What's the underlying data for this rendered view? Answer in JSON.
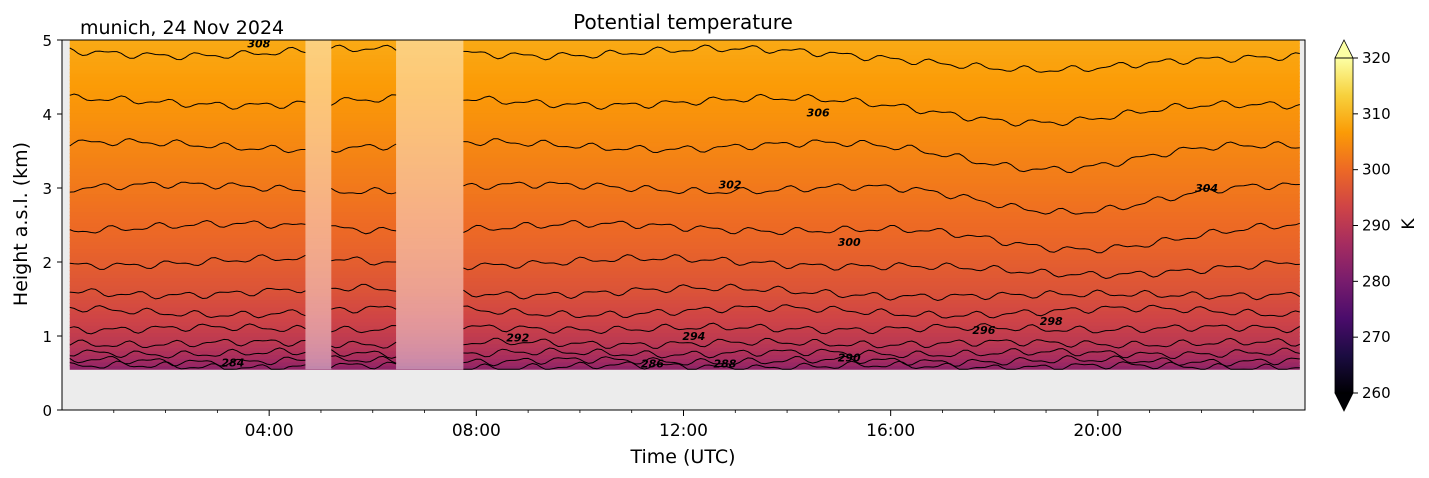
{
  "chart_data": {
    "type": "heatmap",
    "title": "Potential temperature",
    "location_date": "munich, 24 Nov 2024",
    "xlabel": "Time (UTC)",
    "ylabel": "Height a.s.l. (km)",
    "x_ticks": [
      "04:00",
      "08:00",
      "12:00",
      "16:00",
      "20:00"
    ],
    "x_tick_hours": [
      4,
      8,
      12,
      16,
      20
    ],
    "xlim_hours": [
      0,
      24
    ],
    "y_ticks": [
      "0",
      "1",
      "2",
      "3",
      "4",
      "5"
    ],
    "ylim_km": [
      0,
      5
    ],
    "data_bottom_km": 0.55,
    "data_time_range_hours": [
      0.15,
      23.9
    ],
    "missing_data_intervals_hours": [
      [
        4.7,
        5.2
      ],
      [
        6.45,
        7.75
      ]
    ],
    "colormap": "inferno",
    "colorbar": {
      "label": "K",
      "ticks": [
        "260",
        "270",
        "280",
        "290",
        "300",
        "310",
        "320"
      ],
      "range": [
        260,
        320
      ],
      "extend": "both"
    },
    "contour_levels": [
      284,
      286,
      288,
      290,
      292,
      294,
      296,
      298,
      300,
      302,
      304,
      306,
      308
    ],
    "contour_labels": [
      {
        "text": "284",
        "time_hours": 3.3,
        "height_km": 0.64
      },
      {
        "text": "286",
        "time_hours": 11.4,
        "height_km": 0.63
      },
      {
        "text": "288",
        "time_hours": 12.8,
        "height_km": 0.63
      },
      {
        "text": "290",
        "time_hours": 15.2,
        "height_km": 0.71
      },
      {
        "text": "292",
        "time_hours": 8.8,
        "height_km": 0.98
      },
      {
        "text": "294",
        "time_hours": 12.2,
        "height_km": 1.0
      },
      {
        "text": "296",
        "time_hours": 17.8,
        "height_km": 1.08
      },
      {
        "text": "298",
        "time_hours": 19.1,
        "height_km": 1.2
      },
      {
        "text": "300",
        "time_hours": 15.2,
        "height_km": 2.27
      },
      {
        "text": "302",
        "time_hours": 12.9,
        "height_km": 3.05
      },
      {
        "text": "304",
        "time_hours": 22.1,
        "height_km": 3.0
      },
      {
        "text": "306",
        "time_hours": 14.6,
        "height_km": 4.02
      },
      {
        "text": "308",
        "time_hours": 3.8,
        "height_km": 4.95
      }
    ],
    "background_gradient": [
      {
        "height_km": 0.55,
        "theta_K": 283
      },
      {
        "height_km": 0.7,
        "theta_K": 287
      },
      {
        "height_km": 0.9,
        "theta_K": 290
      },
      {
        "height_km": 1.2,
        "theta_K": 293
      },
      {
        "height_km": 1.6,
        "theta_K": 296
      },
      {
        "height_km": 2.2,
        "theta_K": 299
      },
      {
        "height_km": 3.0,
        "theta_K": 302
      },
      {
        "height_km": 4.0,
        "theta_K": 305.5
      },
      {
        "height_km": 5.0,
        "theta_K": 308.5
      }
    ]
  },
  "colors": {
    "missing_fill": "#ececec",
    "contour": "#000000",
    "colormap_stops": [
      "#000004",
      "#1b0c41",
      "#4a0c6b",
      "#781c6d",
      "#a52c60",
      "#cf4446",
      "#ed6925",
      "#fb9b06",
      "#f7d13d",
      "#fcffa4"
    ]
  }
}
